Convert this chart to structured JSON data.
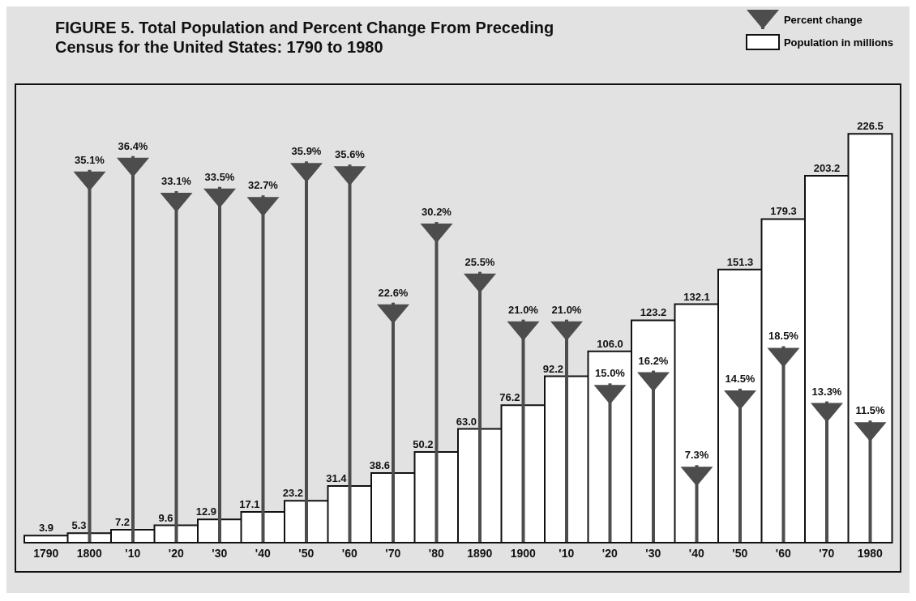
{
  "chart_data": {
    "type": "bar",
    "title": "FIGURE 5. Total Population and Percent Change From Preceding Census for the United States: 1790 to 1980",
    "categories": [
      "1790",
      "1800",
      "'10",
      "'20",
      "'30",
      "'40",
      "'50",
      "'60",
      "'70",
      "'80",
      "1890",
      "1900",
      "'10",
      "'20",
      "'30",
      "'40",
      "'50",
      "'60",
      "'70",
      "1980"
    ],
    "series": [
      {
        "name": "Population in millions",
        "type": "bar",
        "color": "#ffffff",
        "values": [
          3.9,
          5.3,
          7.2,
          9.6,
          12.9,
          17.1,
          23.2,
          31.4,
          38.6,
          50.2,
          63.0,
          76.2,
          92.2,
          106.0,
          123.2,
          132.1,
          151.3,
          179.3,
          203.2,
          226.5
        ],
        "value_labels": [
          "3.9",
          "5.3",
          "7.2",
          "9.6",
          "12.9",
          "17.1",
          "23.2",
          "31.4",
          "38.6",
          "50.2",
          "63.0",
          "76.2",
          "92.2",
          "106.0",
          "123.2",
          "132.1",
          "151.3",
          "179.3",
          "203.2",
          "226.5"
        ]
      },
      {
        "name": "Percent change",
        "type": "bar",
        "axis": "y2",
        "marker": "triangle",
        "color": "#4d4d4d",
        "values": [
          null,
          35.1,
          36.4,
          33.1,
          33.5,
          32.7,
          35.9,
          35.6,
          22.6,
          30.2,
          25.5,
          21.0,
          21.0,
          15.0,
          16.2,
          7.3,
          14.5,
          18.5,
          13.3,
          11.5
        ],
        "value_labels": [
          null,
          "35.1%",
          "36.4%",
          "33.1%",
          "33.5%",
          "32.7%",
          "35.9%",
          "35.6%",
          "22.6%",
          "30.2%",
          "25.5%",
          "21.0%",
          "21.0%",
          "15.0%",
          "16.2%",
          "7.3%",
          "14.5%",
          "18.5%",
          "13.3%",
          "11.5%"
        ]
      }
    ],
    "legend": "top right",
    "grid": false
  }
}
